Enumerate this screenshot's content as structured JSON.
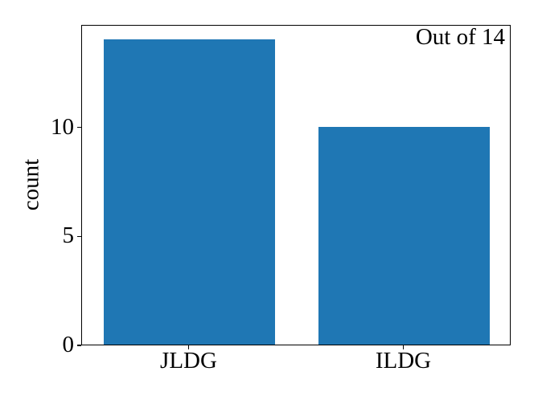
{
  "figure": {
    "background": "#ffffff",
    "text_color": "#000000",
    "spine_color": "#000000"
  },
  "chart_data": {
    "type": "bar",
    "categories": [
      "JLDG",
      "ILDG"
    ],
    "values": [
      14,
      10
    ],
    "title": "",
    "xlabel": "",
    "ylabel": "count",
    "annotation": "Out of 14",
    "annotation_position": "top-right-inside",
    "yticks": [
      0,
      5,
      10
    ],
    "ylim": [
      0,
      14.7
    ],
    "bar_color": "#1f77b4",
    "bar_width_fraction": 0.4,
    "bar_centers_fraction": [
      0.25,
      0.75
    ],
    "grid": false,
    "legend": "none"
  }
}
